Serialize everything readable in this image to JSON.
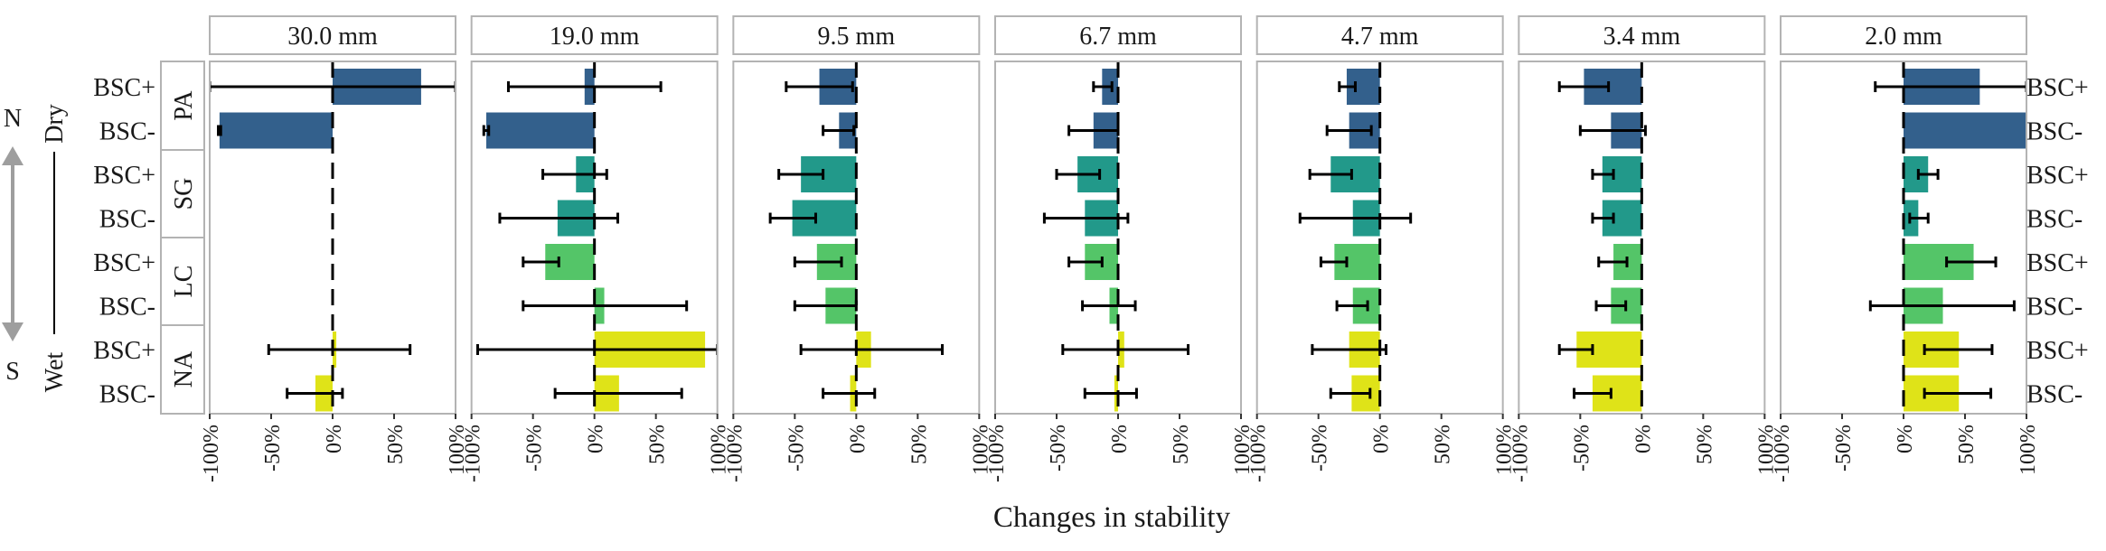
{
  "chart_data": {
    "type": "bar",
    "orientation": "horizontal",
    "xlabel": "Changes in stability",
    "xlim": [
      -100,
      100
    ],
    "x_ticks": [
      "-100%",
      "-50%",
      "0%",
      "50%",
      "100%"
    ],
    "grid": false,
    "legend": "none",
    "panels": [
      "30.0 mm",
      "19.0 mm",
      "9.5 mm",
      "6.7 mm",
      "4.7 mm",
      "3.4 mm",
      "2.0 mm"
    ],
    "groups": [
      "PA",
      "SG",
      "LC",
      "NA"
    ],
    "rows": [
      "BSC+",
      "BSC-"
    ],
    "direction_axis": {
      "north": "N",
      "south": "S",
      "dry": "Dry",
      "wet": "Wet"
    },
    "colors": {
      "PA": "#33608c",
      "SG": "#22998a",
      "LC": "#54c568",
      "NA": "#dfe318"
    },
    "data": {
      "30.0 mm": {
        "PA": [
          {
            "row": "BSC+",
            "value": 72,
            "lower": -100,
            "upper": 100
          },
          {
            "row": "BSC-",
            "value": -92,
            "lower": -93,
            "upper": -91
          }
        ],
        "SG": [
          {
            "row": "BSC+",
            "value": 0,
            "lower": null,
            "upper": null
          },
          {
            "row": "BSC-",
            "value": 0,
            "lower": null,
            "upper": null
          }
        ],
        "LC": [
          {
            "row": "BSC+",
            "value": 0,
            "lower": null,
            "upper": null
          },
          {
            "row": "BSC-",
            "value": 0,
            "lower": null,
            "upper": null
          }
        ],
        "NA": [
          {
            "row": "BSC+",
            "value": 3,
            "lower": -52,
            "upper": 63
          },
          {
            "row": "BSC-",
            "value": -14,
            "lower": -37,
            "upper": 8
          }
        ]
      },
      "19.0 mm": {
        "PA": [
          {
            "row": "BSC+",
            "value": -8,
            "lower": -70,
            "upper": 54
          },
          {
            "row": "BSC-",
            "value": -88,
            "lower": -90,
            "upper": -86
          }
        ],
        "SG": [
          {
            "row": "BSC+",
            "value": -15,
            "lower": -42,
            "upper": 10
          },
          {
            "row": "BSC-",
            "value": -30,
            "lower": -77,
            "upper": 19
          }
        ],
        "LC": [
          {
            "row": "BSC+",
            "value": -40,
            "lower": -58,
            "upper": -29
          },
          {
            "row": "BSC-",
            "value": 8,
            "lower": -58,
            "upper": 75
          }
        ],
        "NA": [
          {
            "row": "BSC+",
            "value": 90,
            "lower": -95,
            "upper": 100
          },
          {
            "row": "BSC-",
            "value": 20,
            "lower": -32,
            "upper": 71
          }
        ]
      },
      "9.5 mm": {
        "PA": [
          {
            "row": "BSC+",
            "value": -30,
            "lower": -57,
            "upper": -3
          },
          {
            "row": "BSC-",
            "value": -14,
            "lower": -27,
            "upper": -2
          }
        ],
        "SG": [
          {
            "row": "BSC+",
            "value": -45,
            "lower": -63,
            "upper": -27
          },
          {
            "row": "BSC-",
            "value": -52,
            "lower": -70,
            "upper": -33
          }
        ],
        "LC": [
          {
            "row": "BSC+",
            "value": -32,
            "lower": -50,
            "upper": -12
          },
          {
            "row": "BSC-",
            "value": -25,
            "lower": -50,
            "upper": 0
          }
        ],
        "NA": [
          {
            "row": "BSC+",
            "value": 12,
            "lower": -45,
            "upper": 70
          },
          {
            "row": "BSC-",
            "value": -5,
            "lower": -27,
            "upper": 15
          }
        ]
      },
      "6.7 mm": {
        "PA": [
          {
            "row": "BSC+",
            "value": -13,
            "lower": -20,
            "upper": -5
          },
          {
            "row": "BSC-",
            "value": -20,
            "lower": -40,
            "upper": 0
          }
        ],
        "SG": [
          {
            "row": "BSC+",
            "value": -33,
            "lower": -50,
            "upper": -15
          },
          {
            "row": "BSC-",
            "value": -27,
            "lower": -60,
            "upper": 8
          }
        ],
        "LC": [
          {
            "row": "BSC+",
            "value": -27,
            "lower": -40,
            "upper": -13
          },
          {
            "row": "BSC-",
            "value": -7,
            "lower": -29,
            "upper": 14
          }
        ],
        "NA": [
          {
            "row": "BSC+",
            "value": 5,
            "lower": -45,
            "upper": 57
          },
          {
            "row": "BSC-",
            "value": -3,
            "lower": -27,
            "upper": 15
          }
        ]
      },
      "4.7 mm": {
        "PA": [
          {
            "row": "BSC+",
            "value": -27,
            "lower": -33,
            "upper": -20
          },
          {
            "row": "BSC-",
            "value": -25,
            "lower": -43,
            "upper": -7
          }
        ],
        "SG": [
          {
            "row": "BSC+",
            "value": -40,
            "lower": -57,
            "upper": -23
          },
          {
            "row": "BSC-",
            "value": -22,
            "lower": -65,
            "upper": 25
          }
        ],
        "LC": [
          {
            "row": "BSC+",
            "value": -37,
            "lower": -48,
            "upper": -27
          },
          {
            "row": "BSC-",
            "value": -22,
            "lower": -35,
            "upper": -10
          }
        ],
        "NA": [
          {
            "row": "BSC+",
            "value": -25,
            "lower": -55,
            "upper": 5
          },
          {
            "row": "BSC-",
            "value": -23,
            "lower": -40,
            "upper": -8
          }
        ]
      },
      "3.4 mm": {
        "PA": [
          {
            "row": "BSC+",
            "value": -47,
            "lower": -67,
            "upper": -27
          },
          {
            "row": "BSC-",
            "value": -25,
            "lower": -50,
            "upper": 3
          }
        ],
        "SG": [
          {
            "row": "BSC+",
            "value": -32,
            "lower": -40,
            "upper": -23
          },
          {
            "row": "BSC-",
            "value": -32,
            "lower": -40,
            "upper": -23
          }
        ],
        "LC": [
          {
            "row": "BSC+",
            "value": -23,
            "lower": -35,
            "upper": -12
          },
          {
            "row": "BSC-",
            "value": -25,
            "lower": -37,
            "upper": -13
          }
        ],
        "NA": [
          {
            "row": "BSC+",
            "value": -53,
            "lower": -67,
            "upper": -40
          },
          {
            "row": "BSC-",
            "value": -40,
            "lower": -55,
            "upper": -25
          }
        ]
      },
      "2.0 mm": {
        "PA": [
          {
            "row": "BSC+",
            "value": 62,
            "lower": -23,
            "upper": 100
          },
          {
            "row": "BSC-",
            "value": 100,
            "lower": null,
            "upper": null
          }
        ],
        "SG": [
          {
            "row": "BSC+",
            "value": 20,
            "lower": 12,
            "upper": 28
          },
          {
            "row": "BSC-",
            "value": 12,
            "lower": 5,
            "upper": 20
          }
        ],
        "LC": [
          {
            "row": "BSC+",
            "value": 57,
            "lower": 35,
            "upper": 75
          },
          {
            "row": "BSC-",
            "value": 32,
            "lower": -27,
            "upper": 90
          }
        ],
        "NA": [
          {
            "row": "BSC+",
            "value": 45,
            "lower": 17,
            "upper": 72
          },
          {
            "row": "BSC-",
            "value": 45,
            "lower": 17,
            "upper": 71
          }
        ]
      }
    }
  }
}
